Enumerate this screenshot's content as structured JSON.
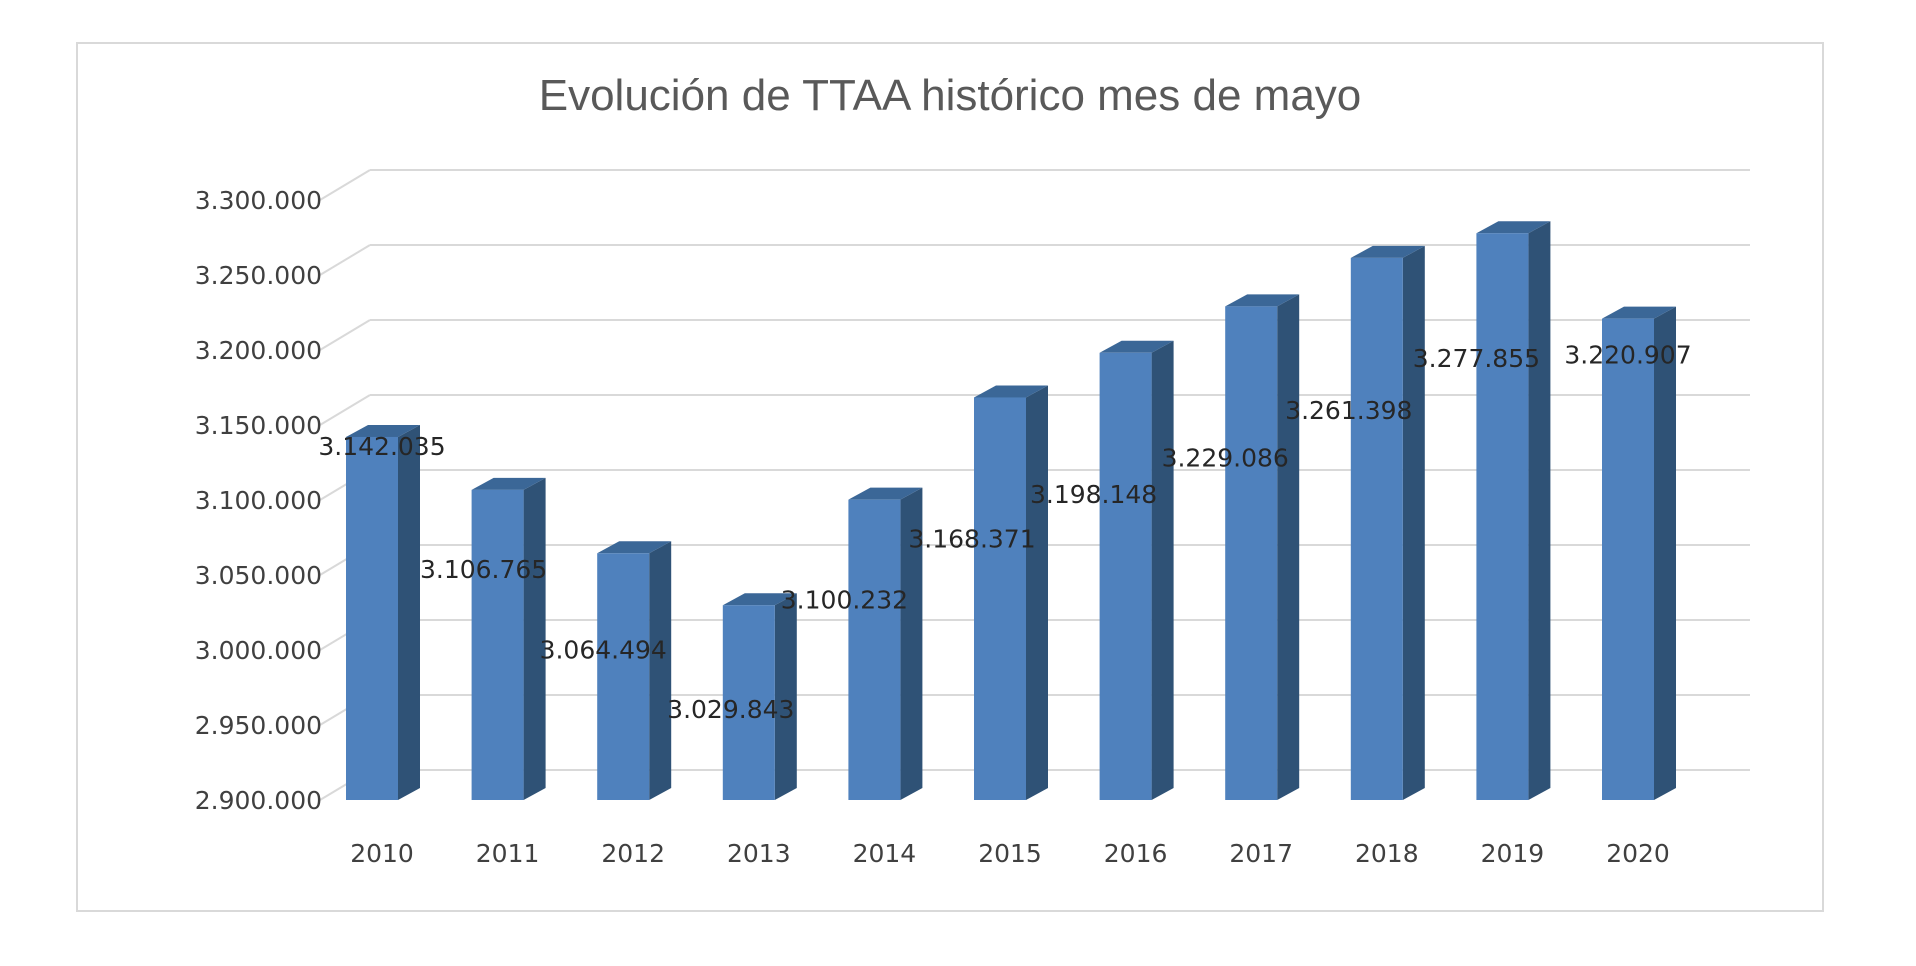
{
  "chart_data": {
    "type": "bar",
    "title": "Evolución de TTAA histórico mes de mayo",
    "xlabel": "",
    "ylabel": "",
    "categories": [
      "2010",
      "2011",
      "2012",
      "2013",
      "2014",
      "2015",
      "2016",
      "2017",
      "2018",
      "2019",
      "2020"
    ],
    "values": [
      3142035,
      3106765,
      3064494,
      3029843,
      3100232,
      3168371,
      3198148,
      3229086,
      3261398,
      3277855,
      3220907
    ],
    "value_labels": [
      "3.142.035",
      "3.106.765",
      "3.064.494",
      "3.029.843",
      "3.100.232",
      "3.168.371",
      "3.198.148",
      "3.229.086",
      "3.261.398",
      "3.277.855",
      "3.220.907"
    ],
    "ylim": [
      2900000,
      3300000
    ],
    "y_ticks": [
      2900000,
      2950000,
      3000000,
      3050000,
      3100000,
      3150000,
      3200000,
      3250000,
      3300000
    ],
    "y_tick_labels": [
      "2.900.000",
      "2.950.000",
      "3.000.000",
      "3.050.000",
      "3.100.000",
      "3.150.000",
      "3.200.000",
      "3.250.000",
      "3.300.000"
    ],
    "grid": true,
    "legend": "none",
    "style": "3d-column",
    "colors": {
      "bar_front": "#4f81bd",
      "bar_side": "#2f5276",
      "bar_top": "#3b6797",
      "grid": "#d9d9d9",
      "frame": "#d9d9d9"
    }
  }
}
